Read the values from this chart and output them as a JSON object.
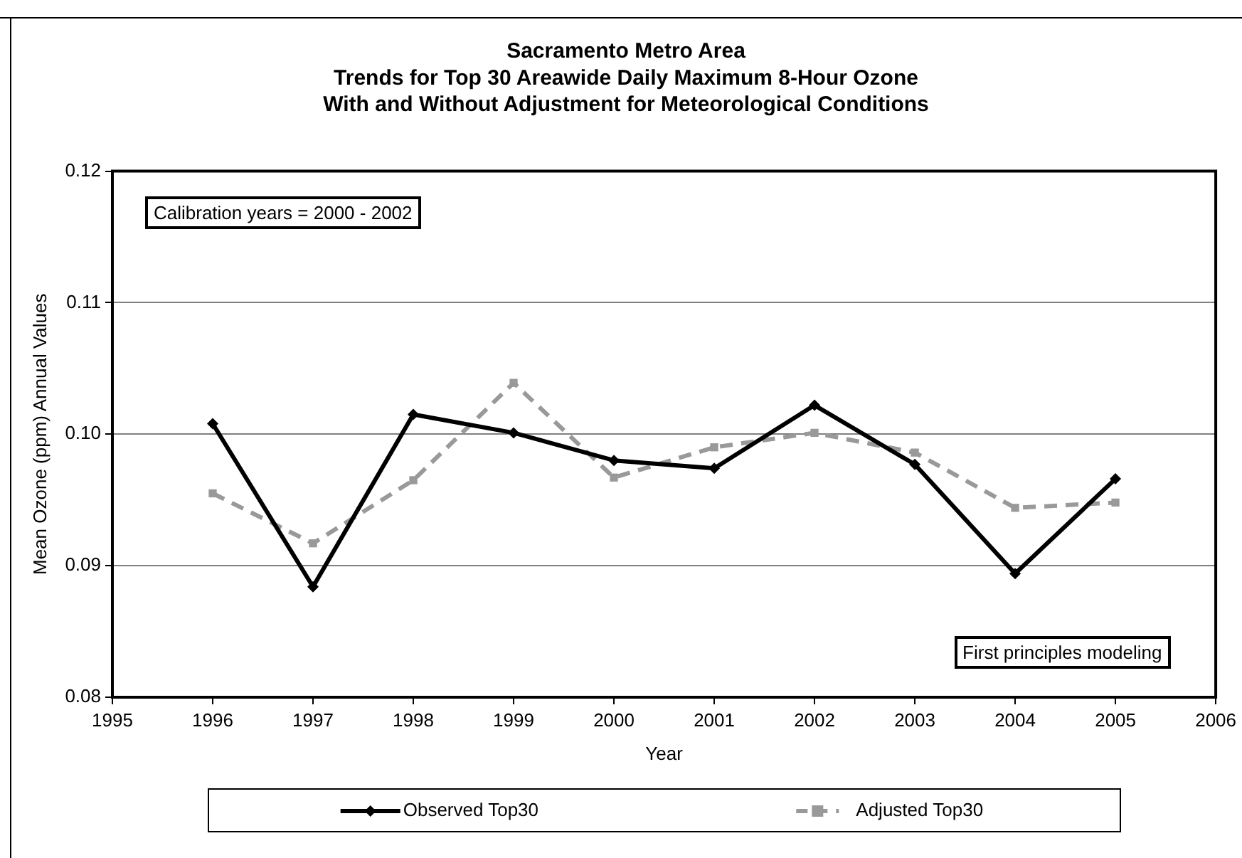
{
  "chart_data": {
    "type": "line",
    "title": "Sacramento Metro Area\nTrends for Top 30 Areawide Daily Maximum 8-Hour Ozone\nWith and Without Adjustment for Meteorological Conditions",
    "xlabel": "Year",
    "ylabel": "Mean Ozone (ppm) Annual Values",
    "annotations": [
      "Calibration years = 2000 - 2002",
      "First principles modeling"
    ],
    "x": [
      1996,
      1997,
      1998,
      1999,
      2000,
      2001,
      2002,
      2003,
      2004,
      2005
    ],
    "series": [
      {
        "name": "Observed Top30",
        "color": "#000000",
        "marker": "diamond",
        "line_style": "solid",
        "values": [
          0.1008,
          0.0884,
          0.1015,
          0.1001,
          0.098,
          0.0974,
          0.1022,
          0.0977,
          0.0894,
          0.0966
        ]
      },
      {
        "name": "Adjusted Top30",
        "color": "#999999",
        "marker": "square",
        "line_style": "dashed",
        "values": [
          0.0955,
          0.0917,
          0.0965,
          0.1039,
          0.0967,
          0.099,
          0.1001,
          0.0986,
          0.0944,
          0.0948
        ]
      }
    ],
    "xlim": [
      1995,
      2006
    ],
    "xticks": [
      1995,
      1996,
      1997,
      1998,
      1999,
      2000,
      2001,
      2002,
      2003,
      2004,
      2005,
      2006
    ],
    "ylim": [
      0.08,
      0.12
    ],
    "yticks": [
      0.08,
      0.09,
      {
        "value": 0.1,
        "label": "0.10"
      },
      0.11,
      0.12
    ],
    "grid": "y",
    "legend": "bottom"
  }
}
